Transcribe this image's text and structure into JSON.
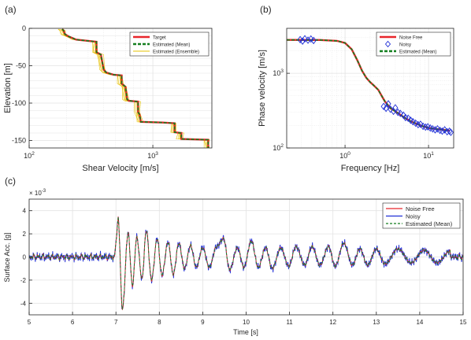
{
  "colors": {
    "red": "#e8262b",
    "green_dash": "#137e1f",
    "yellow": "#e6c000",
    "blue": "#1f2fd6",
    "grid": "#e3e3e3",
    "axis": "#262626"
  },
  "chart_data": [
    {
      "panel_label": "(a)",
      "type": "line",
      "xlabel": "Shear Velocity [m/s]",
      "ylabel": "Elevation [m]",
      "xscale": "log",
      "xlim": [
        100,
        3000
      ],
      "ylim": [
        -160,
        0
      ],
      "xticks": [
        {
          "v": 100,
          "b": "10",
          "e": "2"
        },
        {
          "v": 1000,
          "b": "10",
          "e": "3"
        }
      ],
      "yticks": [
        0,
        -50,
        -100,
        -150
      ],
      "grid": true,
      "legend_position": "top-right",
      "legend": [
        "Target",
        "Estimated (Mean)",
        "Estimated (Ensemble)"
      ],
      "series": [
        {
          "name": "Target",
          "color": "red",
          "style": "solid",
          "points": [
            [
              185,
              -1
            ],
            [
              190,
              -3
            ],
            [
              195,
              -8
            ],
            [
              210,
              -11
            ],
            [
              240,
              -15
            ],
            [
              350,
              -18
            ],
            [
              350,
              -32
            ],
            [
              380,
              -35
            ],
            [
              400,
              -55
            ],
            [
              420,
              -59
            ],
            [
              480,
              -62
            ],
            [
              560,
              -63
            ],
            [
              560,
              -74
            ],
            [
              600,
              -78
            ],
            [
              620,
              -95
            ],
            [
              640,
              -97
            ],
            [
              760,
              -98
            ],
            [
              760,
              -112
            ],
            [
              780,
              -115
            ],
            [
              800,
              -125
            ],
            [
              1200,
              -126
            ],
            [
              1500,
              -127
            ],
            [
              1500,
              -139
            ],
            [
              1700,
              -140
            ],
            [
              1700,
              -148
            ],
            [
              2800,
              -149
            ],
            [
              2800,
              -160
            ]
          ]
        },
        {
          "name": "Estimated (Mean)",
          "color": "green_dash",
          "style": "dashed",
          "points": [
            [
              185,
              -1
            ],
            [
              190,
              -3
            ],
            [
              195,
              -8
            ],
            [
              210,
              -11
            ],
            [
              240,
              -15
            ],
            [
              350,
              -18
            ],
            [
              350,
              -32
            ],
            [
              380,
              -35
            ],
            [
              400,
              -55
            ],
            [
              420,
              -59
            ],
            [
              480,
              -62
            ],
            [
              560,
              -63
            ],
            [
              560,
              -74
            ],
            [
              600,
              -78
            ],
            [
              620,
              -95
            ],
            [
              640,
              -97
            ],
            [
              760,
              -98
            ],
            [
              760,
              -112
            ],
            [
              780,
              -115
            ],
            [
              800,
              -125
            ],
            [
              1200,
              -126
            ],
            [
              1500,
              -127
            ],
            [
              1500,
              -139
            ],
            [
              1700,
              -140
            ],
            [
              1700,
              -148
            ],
            [
              2800,
              -149
            ],
            [
              2800,
              -160
            ]
          ]
        }
      ]
    },
    {
      "panel_label": "(b)",
      "type": "line",
      "xlabel": "Frequency [Hz]",
      "ylabel": "Phase velocity [m/s]",
      "xscale": "log",
      "yscale": "log",
      "xlim": [
        0.2,
        20
      ],
      "ylim": [
        100,
        4000
      ],
      "xticks": [
        {
          "v": 1,
          "b": "10",
          "e": "0"
        },
        {
          "v": 10,
          "b": "10",
          "e": "1"
        }
      ],
      "yticks": [
        {
          "v": 100,
          "b": "10",
          "e": "2"
        },
        {
          "v": 1000,
          "b": "10",
          "e": "3"
        }
      ],
      "grid": true,
      "legend_position": "top-right",
      "legend": [
        "Noise Free",
        "Noisy",
        "Estimated (Mean)"
      ],
      "series": [
        {
          "name": "Noise Free",
          "color": "red",
          "style": "solid",
          "points": [
            [
              0.2,
              2800
            ],
            [
              0.5,
              2790
            ],
            [
              0.8,
              2720
            ],
            [
              1.0,
              2550
            ],
            [
              1.2,
              2100
            ],
            [
              1.4,
              1500
            ],
            [
              1.6,
              1080
            ],
            [
              1.8,
              870
            ],
            [
              2.0,
              760
            ],
            [
              2.2,
              690
            ],
            [
              2.5,
              600
            ],
            [
              2.8,
              480
            ],
            [
              3.0,
              420
            ],
            [
              3.5,
              340
            ],
            [
              4.0,
              310
            ],
            [
              5.0,
              260
            ],
            [
              6.0,
              230
            ],
            [
              8.0,
              200
            ],
            [
              10.0,
              185
            ],
            [
              15.0,
              175
            ],
            [
              18.0,
              170
            ]
          ]
        },
        {
          "name": "Estimated (Mean)",
          "color": "green_dash",
          "style": "dashed",
          "points": [
            [
              0.2,
              2800
            ],
            [
              0.5,
              2790
            ],
            [
              0.8,
              2720
            ],
            [
              1.0,
              2550
            ],
            [
              1.2,
              2100
            ],
            [
              1.4,
              1500
            ],
            [
              1.6,
              1080
            ],
            [
              1.8,
              870
            ],
            [
              2.0,
              760
            ],
            [
              2.2,
              690
            ],
            [
              2.5,
              600
            ],
            [
              2.8,
              480
            ],
            [
              3.0,
              420
            ],
            [
              3.5,
              340
            ],
            [
              4.0,
              310
            ],
            [
              5.0,
              260
            ],
            [
              6.0,
              230
            ],
            [
              8.0,
              200
            ],
            [
              10.0,
              185
            ],
            [
              15.0,
              175
            ],
            [
              18.0,
              170
            ]
          ]
        },
        {
          "name": "Noisy",
          "color": "blue",
          "style": "diamond",
          "points": [
            [
              0.29,
              2820
            ],
            [
              0.31,
              2700
            ],
            [
              0.33,
              2900
            ],
            [
              0.36,
              2780
            ],
            [
              0.39,
              2880
            ],
            [
              0.42,
              2750
            ],
            [
              2.9,
              360
            ],
            [
              3.1,
              340
            ],
            [
              3.3,
              390
            ],
            [
              3.5,
              330
            ],
            [
              3.8,
              310
            ],
            [
              4.0,
              345
            ],
            [
              4.3,
              300
            ],
            [
              4.6,
              290
            ],
            [
              5.0,
              275
            ],
            [
              5.3,
              255
            ],
            [
              5.7,
              250
            ],
            [
              6.1,
              235
            ],
            [
              6.5,
              225
            ],
            [
              7.0,
              215
            ],
            [
              7.5,
              205
            ],
            [
              8.0,
              208
            ],
            [
              8.6,
              195
            ],
            [
              9.2,
              190
            ],
            [
              9.8,
              192
            ],
            [
              10.5,
              185
            ],
            [
              11.2,
              180
            ],
            [
              12.0,
              175
            ],
            [
              12.8,
              180
            ],
            [
              13.7,
              172
            ],
            [
              14.6,
              168
            ],
            [
              15.6,
              175
            ],
            [
              16.7,
              165
            ],
            [
              17.8,
              168
            ],
            [
              18.5,
              162
            ]
          ]
        }
      ]
    },
    {
      "panel_label": "(c)",
      "type": "line",
      "xlabel": "Time [s]",
      "ylabel": "Surface Acc. [g]",
      "exponent_label": {
        "base": "× 10",
        "exp": "-3"
      },
      "xlim": [
        5,
        15
      ],
      "ylim": [
        -5,
        5
      ],
      "xticks": [
        5,
        6,
        7,
        8,
        9,
        10,
        11,
        12,
        13,
        14,
        15
      ],
      "yticks": [
        -4,
        -2,
        0,
        2,
        4
      ],
      "grid": true,
      "legend_position": "top-right",
      "legend": [
        "Noise Free",
        "Noisy",
        "Estimated (Mean)"
      ],
      "background_noise_amplitude": 0.25,
      "series": [
        {
          "name": "Noise Free",
          "color": "red",
          "style": "solid"
        },
        {
          "name": "Noisy",
          "color": "blue",
          "style": "solid"
        },
        {
          "name": "Estimated (Mean)",
          "color": "green_dash",
          "style": "dashed"
        }
      ],
      "peaks": [
        [
          7.05,
          3.4
        ],
        [
          7.15,
          -4.5
        ],
        [
          7.28,
          2.1
        ],
        [
          7.38,
          -2.5
        ],
        [
          7.48,
          1.7
        ],
        [
          7.6,
          -1.9
        ],
        [
          7.7,
          2.3
        ],
        [
          7.82,
          -2.0
        ],
        [
          7.95,
          1.6
        ],
        [
          8.06,
          -1.6
        ],
        [
          8.2,
          1.3
        ],
        [
          8.32,
          -1.5
        ],
        [
          8.45,
          1.2
        ],
        [
          8.58,
          -1.0
        ],
        [
          8.72,
          1.0
        ],
        [
          8.85,
          -0.9
        ],
        [
          9.0,
          0.8
        ],
        [
          9.15,
          -0.9
        ],
        [
          9.32,
          0.9
        ],
        [
          9.48,
          1.6
        ],
        [
          9.62,
          -1.1
        ],
        [
          9.8,
          0.8
        ],
        [
          9.95,
          -0.9
        ],
        [
          10.12,
          1.4
        ],
        [
          10.28,
          -0.9
        ],
        [
          10.45,
          0.8
        ],
        [
          10.6,
          -1.0
        ],
        [
          10.8,
          0.8
        ],
        [
          10.98,
          -0.8
        ],
        [
          11.15,
          0.9
        ],
        [
          11.35,
          -0.7
        ],
        [
          11.52,
          0.9
        ],
        [
          11.7,
          -0.7
        ],
        [
          11.9,
          0.9
        ],
        [
          12.05,
          -0.8
        ],
        [
          12.25,
          1.2
        ],
        [
          12.45,
          -0.7
        ],
        [
          12.62,
          0.7
        ],
        [
          12.8,
          -0.7
        ],
        [
          13.0,
          0.7
        ],
        [
          13.2,
          -0.6
        ],
        [
          13.5,
          0.7
        ],
        [
          13.8,
          -0.5
        ],
        [
          14.1,
          0.6
        ],
        [
          14.4,
          -0.5
        ],
        [
          14.7,
          0.5
        ]
      ]
    }
  ]
}
